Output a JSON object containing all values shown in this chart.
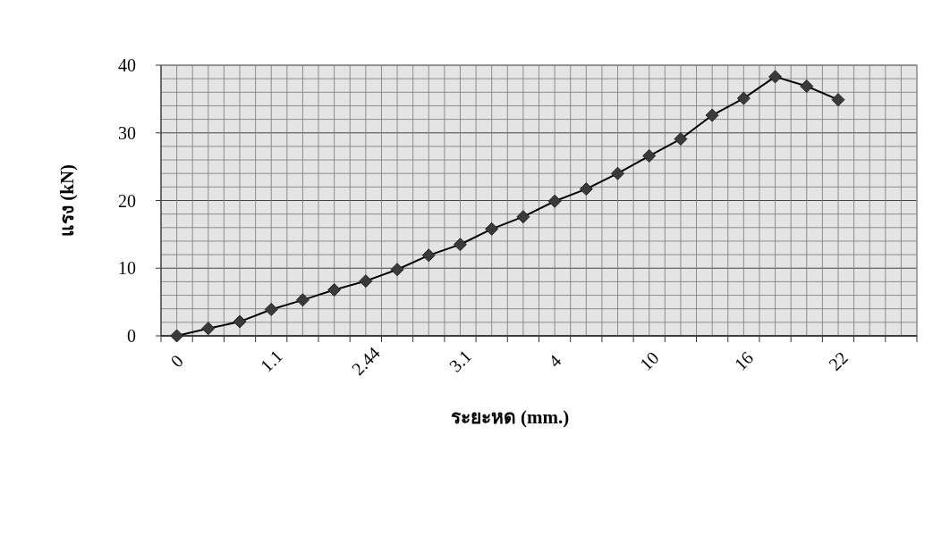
{
  "chart_data": {
    "type": "line",
    "xlabel": "ระยะหด (mm.)",
    "ylabel": "แรง (kN)",
    "categories": [
      "0",
      null,
      null,
      "1.1",
      null,
      null,
      "2.44",
      null,
      null,
      "3.1",
      null,
      null,
      "4",
      null,
      null,
      "10",
      null,
      null,
      "16",
      null,
      null,
      "22",
      null,
      null
    ],
    "series": [
      {
        "color": "#3a3a3a",
        "values": [
          0,
          1.1,
          2.1,
          3.9,
          5.3,
          6.8,
          8.1,
          9.8,
          11.9,
          13.5,
          15.8,
          17.6,
          19.9,
          21.7,
          24.0,
          26.6,
          29.1,
          32.6,
          35.1,
          38.3,
          36.9,
          34.9,
          null,
          null
        ]
      }
    ],
    "ylim": [
      0,
      40
    ],
    "yticks": [
      0,
      10,
      20,
      30,
      40
    ],
    "grid": true,
    "marker": "diamond",
    "line_style": "solid"
  }
}
